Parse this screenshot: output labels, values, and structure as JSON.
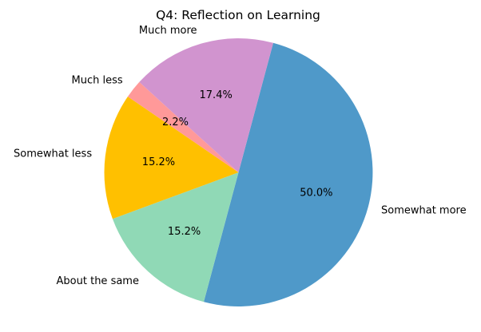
{
  "chart_data": {
    "type": "pie",
    "title": "Q4: Reflection on Learning",
    "categories": [
      "Somewhat more",
      "About the same",
      "Somewhat less",
      "Much less",
      "Much more"
    ],
    "values": [
      50.0,
      15.2,
      15.2,
      2.2,
      17.4
    ],
    "value_labels": [
      "50.0%",
      "15.2%",
      "15.2%",
      "2.2%",
      "17.4%"
    ],
    "colors": [
      "#4f99c9",
      "#90d9b6",
      "#ffc000",
      "#ff9999",
      "#d194cf"
    ],
    "start_angle_deg": 75,
    "direction": "clockwise"
  }
}
